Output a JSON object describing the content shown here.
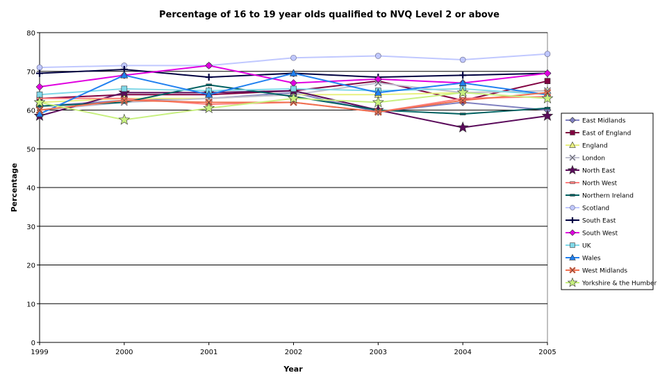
{
  "chart_data": {
    "type": "line",
    "title": "Percentage of 16 to 19 year olds qualified to NVQ Level 2 or above",
    "xlabel": "Year",
    "ylabel": "Percentage",
    "x": [
      "1999",
      "2000",
      "2001",
      "2002",
      "2003",
      "2004",
      "2005"
    ],
    "ylim": [
      0,
      80
    ],
    "yticks": [
      0,
      10,
      20,
      30,
      40,
      50,
      60,
      70,
      80
    ],
    "grid": "horizontal",
    "legend_position": "right",
    "series": [
      {
        "name": "East Midlands",
        "color": "#8080c0",
        "marker": "diamond",
        "values": [
          61,
          62.5,
          63,
          64.5,
          59.5,
          62,
          60
        ]
      },
      {
        "name": "East of England",
        "color": "#800040",
        "marker": "square",
        "values": [
          63,
          64,
          64,
          65,
          67.5,
          62.5,
          67.5
        ]
      },
      {
        "name": "England",
        "color": "#e8f080",
        "marker": "triangle",
        "values": [
          62,
          63,
          63,
          64,
          64,
          64.5,
          65
        ]
      },
      {
        "name": "London",
        "color": "#c0c0d0",
        "marker": "x",
        "values": [
          60,
          62,
          63,
          64,
          67,
          64.5,
          65
        ]
      },
      {
        "name": "North East",
        "color": "#5a0a5a",
        "marker": "star",
        "values": [
          58.5,
          64.5,
          64.5,
          65,
          60,
          55.5,
          58.5
        ]
      },
      {
        "name": "North West",
        "color": "#ff8080",
        "marker": "dash",
        "values": [
          63,
          63,
          61.5,
          62,
          59.5,
          63,
          63.5
        ]
      },
      {
        "name": "Northern Ireland",
        "color": "#006060",
        "marker": "dash",
        "values": [
          61,
          62,
          66.5,
          63.5,
          60,
          59,
          60.5
        ]
      },
      {
        "name": "Scotland",
        "color": "#c0c8ff",
        "marker": "circle",
        "values": [
          71,
          71.5,
          71.5,
          73.5,
          74,
          73,
          74.5
        ]
      },
      {
        "name": "South East",
        "color": "#000040",
        "marker": "plus",
        "values": [
          69.5,
          70.5,
          68.5,
          69.5,
          68.5,
          69,
          69.5
        ]
      },
      {
        "name": "South West",
        "color": "#e000e0",
        "marker": "diamond",
        "values": [
          66,
          69,
          71.5,
          67,
          68,
          67,
          69.5
        ]
      },
      {
        "name": "UK",
        "color": "#80d8e8",
        "marker": "square",
        "values": [
          64,
          65.5,
          65,
          65.5,
          65,
          65.5,
          64
        ]
      },
      {
        "name": "Wales",
        "color": "#2080f0",
        "marker": "triangle",
        "values": [
          59,
          69,
          64,
          69.5,
          64.5,
          67,
          64
        ]
      },
      {
        "name": "West Midlands",
        "color": "#f07050",
        "marker": "x",
        "values": [
          60,
          62.5,
          62,
          62,
          59.5,
          62.5,
          64.5
        ]
      },
      {
        "name": "Yorkshire & the Humber",
        "color": "#c8f080",
        "marker": "star",
        "values": [
          62,
          57.5,
          60.5,
          63,
          62,
          64.5,
          63
        ]
      }
    ]
  }
}
